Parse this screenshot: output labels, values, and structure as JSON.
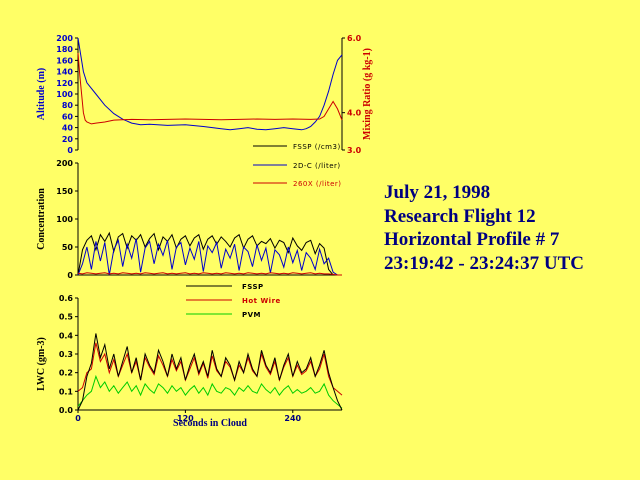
{
  "info": {
    "date": "July 21, 1998",
    "flight": "Research Flight 12",
    "profile": "Horizontal Profile # 7",
    "time_range": "23:19:42 - 23:24:37 UTC"
  },
  "colors": {
    "background": "#ffff66",
    "text": "#000080",
    "altitude": "#0000cc",
    "mixing": "#cc0000",
    "fssp": "#000000",
    "c2d": "#0000cc",
    "x260": "#cc0000",
    "lwc_fssp": "#000000",
    "hotwire": "#cc0000",
    "pvm": "#00cc00"
  },
  "chart_data": [
    {
      "type": "line",
      "x_range": [
        0,
        295
      ],
      "ylabel": "Altitude (m)",
      "y2label": "Mixing Ratio (g kg-1)",
      "ylim": [
        0,
        200
      ],
      "y2lim": [
        3.0,
        6.0
      ],
      "y_ticks": [
        "200",
        "180",
        "160",
        "140",
        "120",
        "100",
        "80",
        "60",
        "40",
        "20",
        "0"
      ],
      "y2_ticks": [
        "6.0",
        "4.0",
        "3.0"
      ],
      "y2_tick_values": [
        6.0,
        4.0,
        3.0
      ],
      "grid": false,
      "series": [
        {
          "name": "Altitude",
          "axis": "left",
          "x": [
            0,
            3,
            6,
            10,
            20,
            30,
            40,
            50,
            60,
            70,
            80,
            100,
            120,
            140,
            160,
            170,
            180,
            190,
            200,
            210,
            220,
            230,
            240,
            250,
            255,
            260,
            265,
            270,
            275,
            280,
            285,
            290,
            295
          ],
          "y": [
            200,
            170,
            140,
            120,
            100,
            80,
            65,
            55,
            48,
            45,
            46,
            44,
            45,
            42,
            38,
            36,
            38,
            40,
            37,
            36,
            38,
            40,
            38,
            36,
            38,
            42,
            50,
            60,
            80,
            105,
            135,
            160,
            170
          ]
        },
        {
          "name": "Mixing Ratio",
          "axis": "right",
          "x": [
            0,
            2,
            4,
            6,
            8,
            10,
            15,
            20,
            30,
            40,
            60,
            80,
            100,
            120,
            140,
            160,
            180,
            200,
            220,
            240,
            260,
            270,
            275,
            280,
            285,
            290,
            295
          ],
          "y": [
            5.6,
            5.0,
            4.5,
            4.0,
            3.8,
            3.75,
            3.7,
            3.72,
            3.75,
            3.8,
            3.82,
            3.81,
            3.82,
            3.83,
            3.82,
            3.81,
            3.82,
            3.83,
            3.82,
            3.83,
            3.82,
            3.83,
            3.9,
            4.1,
            4.3,
            4.1,
            3.8
          ]
        }
      ]
    },
    {
      "type": "line",
      "x_range": [
        0,
        295
      ],
      "ylabel": "Concentration",
      "ylim": [
        0,
        200
      ],
      "y_ticks": [
        "200",
        "150",
        "100",
        "50",
        "0"
      ],
      "legend_position": "top-right",
      "grid": false,
      "series": [
        {
          "name": "FSSP (/cm3)",
          "x_step": 5,
          "y": [
            0,
            45,
            62,
            70,
            45,
            72,
            60,
            75,
            42,
            68,
            74,
            48,
            70,
            62,
            72,
            50,
            65,
            74,
            45,
            68,
            60,
            72,
            48,
            64,
            70,
            52,
            66,
            72,
            46,
            64,
            70,
            55,
            68,
            60,
            50,
            66,
            72,
            48,
            64,
            70,
            52,
            60,
            56,
            65,
            48,
            62,
            58,
            40,
            66,
            52,
            44,
            58,
            62,
            38,
            56,
            48,
            10,
            0,
            0,
            0
          ]
        },
        {
          "name": "2D-C (/liter)",
          "x_step": 5,
          "y": [
            0,
            20,
            50,
            10,
            60,
            25,
            58,
            0,
            45,
            62,
            15,
            55,
            30,
            65,
            5,
            48,
            60,
            20,
            55,
            35,
            62,
            10,
            50,
            58,
            18,
            48,
            28,
            60,
            6,
            52,
            40,
            58,
            12,
            46,
            30,
            55,
            8,
            50,
            42,
            15,
            54,
            26,
            48,
            4,
            45,
            36,
            14,
            50,
            22,
            44,
            8,
            40,
            30,
            10,
            46,
            20,
            30,
            5,
            0,
            0
          ]
        },
        {
          "name": "260X (/liter)",
          "x_step": 5,
          "y": [
            3,
            2,
            4,
            3,
            2,
            3,
            4,
            2,
            3,
            2,
            4,
            3,
            2,
            3,
            2,
            4,
            3,
            2,
            3,
            4,
            2,
            3,
            2,
            3,
            4,
            2,
            3,
            2,
            4,
            3,
            2,
            3,
            2,
            4,
            3,
            2,
            3,
            2,
            4,
            3,
            2,
            3,
            2,
            4,
            3,
            2,
            3,
            2,
            4,
            3,
            2,
            3,
            4,
            2,
            3,
            2,
            2,
            1,
            0,
            0
          ]
        }
      ]
    },
    {
      "type": "line",
      "x_range": [
        0,
        295
      ],
      "xlabel": "Seconds in Cloud",
      "x_ticks": [
        0,
        120,
        240
      ],
      "ylabel": "LWC (gm-3)",
      "ylim": [
        0,
        0.6
      ],
      "y_ticks": [
        "0.6",
        "0.5",
        "0.4",
        "0.3",
        "0.2",
        "0.1",
        "0.0"
      ],
      "legend_position": "top-center",
      "grid": false,
      "series": [
        {
          "name": "FSSP",
          "x_step": 5,
          "y": [
            0,
            0.05,
            0.18,
            0.25,
            0.41,
            0.28,
            0.35,
            0.22,
            0.3,
            0.18,
            0.26,
            0.34,
            0.2,
            0.28,
            0.16,
            0.3,
            0.24,
            0.2,
            0.32,
            0.26,
            0.18,
            0.3,
            0.22,
            0.28,
            0.16,
            0.24,
            0.3,
            0.2,
            0.26,
            0.18,
            0.32,
            0.22,
            0.18,
            0.28,
            0.24,
            0.16,
            0.26,
            0.2,
            0.3,
            0.22,
            0.18,
            0.32,
            0.24,
            0.2,
            0.28,
            0.16,
            0.24,
            0.3,
            0.18,
            0.26,
            0.2,
            0.22,
            0.28,
            0.18,
            0.24,
            0.32,
            0.2,
            0.12,
            0.05,
            0.0
          ]
        },
        {
          "name": "Hot Wire",
          "x_step": 5,
          "y": [
            0.1,
            0.12,
            0.2,
            0.22,
            0.36,
            0.26,
            0.3,
            0.2,
            0.27,
            0.18,
            0.24,
            0.3,
            0.2,
            0.26,
            0.16,
            0.28,
            0.23,
            0.19,
            0.29,
            0.24,
            0.18,
            0.27,
            0.21,
            0.26,
            0.16,
            0.22,
            0.28,
            0.19,
            0.25,
            0.17,
            0.29,
            0.21,
            0.18,
            0.26,
            0.23,
            0.16,
            0.24,
            0.2,
            0.28,
            0.21,
            0.18,
            0.3,
            0.23,
            0.19,
            0.26,
            0.16,
            0.23,
            0.28,
            0.18,
            0.24,
            0.19,
            0.21,
            0.26,
            0.18,
            0.22,
            0.3,
            0.18,
            0.12,
            0.1,
            0.08
          ]
        },
        {
          "name": "PVM",
          "x_step": 5,
          "y": [
            0.02,
            0.05,
            0.08,
            0.1,
            0.18,
            0.12,
            0.15,
            0.1,
            0.13,
            0.09,
            0.12,
            0.15,
            0.1,
            0.13,
            0.08,
            0.14,
            0.11,
            0.09,
            0.14,
            0.12,
            0.09,
            0.13,
            0.1,
            0.12,
            0.08,
            0.11,
            0.13,
            0.09,
            0.12,
            0.08,
            0.14,
            0.1,
            0.09,
            0.12,
            0.11,
            0.08,
            0.12,
            0.1,
            0.13,
            0.1,
            0.09,
            0.14,
            0.11,
            0.09,
            0.12,
            0.08,
            0.11,
            0.13,
            0.09,
            0.11,
            0.09,
            0.1,
            0.12,
            0.09,
            0.1,
            0.14,
            0.08,
            0.05,
            0.03,
            0.01
          ]
        }
      ]
    }
  ]
}
